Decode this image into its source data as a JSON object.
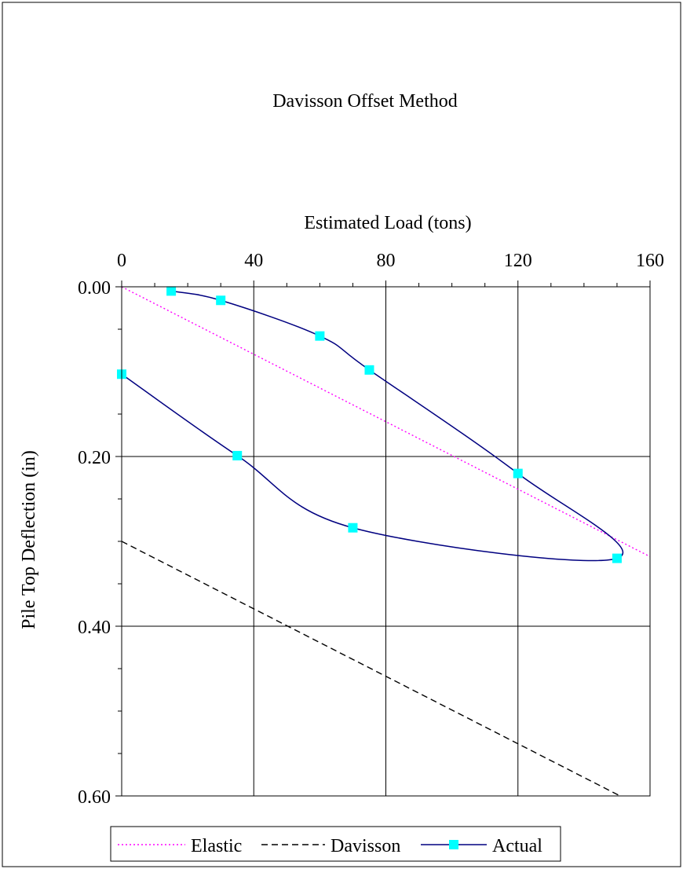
{
  "chart_data": {
    "type": "scatter",
    "title": "Davisson Offset Method",
    "xlabel": "Estimated Load (tons)",
    "ylabel": "Pile Top Deflection (in)",
    "xlim": [
      0,
      160
    ],
    "ylim": [
      0.6,
      0.0
    ],
    "y_inverted": true,
    "x_axis_position": "top",
    "x_ticks": [
      "0",
      "40",
      "80",
      "120",
      "160"
    ],
    "x_tick_values": [
      0,
      40,
      80,
      120,
      160
    ],
    "y_ticks": [
      "0.00",
      "0.20",
      "0.40",
      "0.60"
    ],
    "y_tick_values": [
      0.0,
      0.2,
      0.4,
      0.6
    ],
    "grid": true,
    "legend_position": "bottom",
    "series": [
      {
        "name": "Elastic",
        "style": "dotted",
        "color": "#ff00ff",
        "markers": false,
        "x": [
          0,
          160
        ],
        "y": [
          0.0,
          0.318
        ]
      },
      {
        "name": "Davisson",
        "style": "dashed",
        "color": "#000000",
        "markers": false,
        "x": [
          0,
          160
        ],
        "y": [
          0.3,
          0.618
        ]
      },
      {
        "name": "Actual",
        "style": "solid",
        "color": "#000080",
        "markers": true,
        "marker_color": "#00ffff",
        "x": [
          15,
          30,
          60,
          75,
          120,
          150,
          70,
          35,
          0
        ],
        "y": [
          0.005,
          0.016,
          0.058,
          0.098,
          0.22,
          0.32,
          0.284,
          0.199,
          0.103
        ]
      }
    ]
  }
}
